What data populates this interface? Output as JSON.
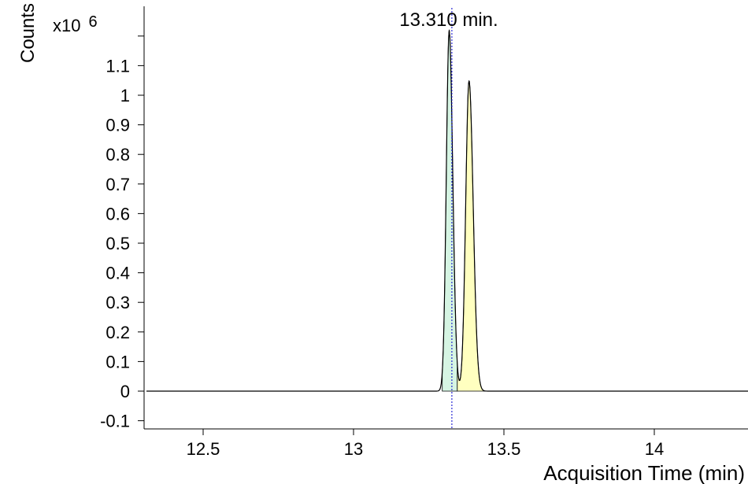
{
  "chart_data": {
    "type": "line",
    "title": "",
    "xlabel": "Acquisition Time (min)",
    "ylabel": "Counts",
    "y_multiplier": "x10",
    "y_multiplier_exp": "6",
    "xlim": [
      12.3,
      14.3
    ],
    "ylim": [
      -0.13,
      1.25
    ],
    "x_ticks": [
      12.5,
      13,
      13.5,
      14
    ],
    "x_tick_labels": [
      "12.5",
      "13",
      "13.5",
      "14"
    ],
    "y_ticks": [
      -0.1,
      0,
      0.1,
      0.2,
      0.3,
      0.4,
      0.5,
      0.6,
      0.7,
      0.8,
      0.9,
      1,
      1.1
    ],
    "y_tick_labels": [
      "-0.1",
      "0",
      "0.1",
      "0.2",
      "0.3",
      "0.4",
      "0.5",
      "0.6",
      "0.7",
      "0.8",
      "0.9",
      "1",
      "1.1"
    ],
    "y_extra_tick": 1.2,
    "marker": {
      "x": 13.327,
      "label": "13.310 min."
    },
    "peaks": [
      {
        "center": 13.318,
        "height": 1.22,
        "sigma": 0.0095,
        "x_start": 13.295,
        "x_end": 13.345,
        "fill": "#d6f5e3"
      },
      {
        "center": 13.384,
        "height": 1.05,
        "sigma": 0.011,
        "x_start": 13.345,
        "x_end": 13.455,
        "fill": "#ffffc0"
      }
    ],
    "grid": false,
    "legend": "none",
    "colors": {
      "trace": "#000000",
      "marker": "#0000cc",
      "axis": "#000000"
    }
  }
}
